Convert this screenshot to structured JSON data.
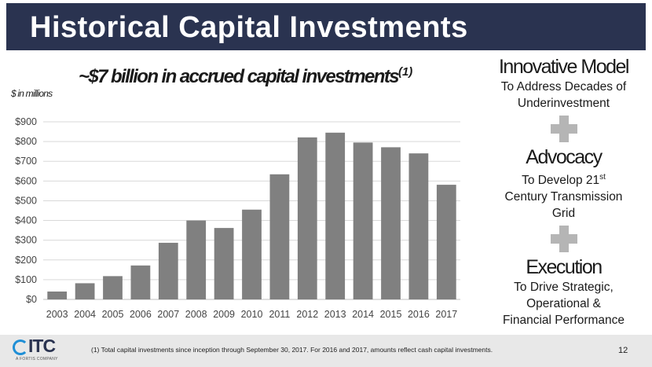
{
  "slide_title": "Historical Capital Investments",
  "subtitle": {
    "text": "~$7 billion in accrued capital investments",
    "superscript": "(1)"
  },
  "units_label": "$ in millions",
  "chart_data": {
    "type": "bar",
    "title": "~$7 billion in accrued capital investments",
    "xlabel": "",
    "ylabel": "$ in millions",
    "categories": [
      "2003",
      "2004",
      "2005",
      "2006",
      "2007",
      "2008",
      "2009",
      "2010",
      "2011",
      "2012",
      "2013",
      "2014",
      "2015",
      "2016",
      "2017"
    ],
    "values": [
      40,
      82,
      118,
      172,
      287,
      400,
      362,
      455,
      634,
      821,
      845,
      795,
      771,
      740,
      581
    ],
    "ylim": [
      0,
      900
    ],
    "yticks": [
      0,
      100,
      200,
      300,
      400,
      500,
      600,
      700,
      800,
      900
    ],
    "ytick_labels": [
      "$0",
      "$100",
      "$200",
      "$300",
      "$400",
      "$500",
      "$600",
      "$700",
      "$800",
      "$900"
    ],
    "grid": true,
    "bar_color": "#808080",
    "grid_color": "#d9d9d9"
  },
  "right_panel": {
    "innovative_heading": "Innovative Model",
    "innovative_desc_1": "To Address Decades of",
    "innovative_desc_2": "Underinvestment",
    "advocacy_heading": "Advocacy",
    "advocacy_desc_1": "To Develop 21",
    "advocacy_desc_sup": "st",
    "advocacy_desc_2": "Century Transmission",
    "advocacy_desc_3": "Grid",
    "execution_heading": "Execution",
    "execution_desc_1": "To Drive Strategic,",
    "execution_desc_2": "Operational &",
    "execution_desc_3": "Financial Performance",
    "plus_color": "#b5b5b5"
  },
  "footer": {
    "logo_text": "ITC",
    "logo_sub": "A FORTIS COMPANY",
    "footnote": "(1) Total capital investments since inception through September 30, 2017.  For 2016 and 2017, amounts reflect cash capital investments.",
    "page_number": "12"
  },
  "colors": {
    "header_bg": "#2a3350",
    "footer_bg": "#e8e8e8",
    "logo_blue": "#1f8fd6"
  }
}
